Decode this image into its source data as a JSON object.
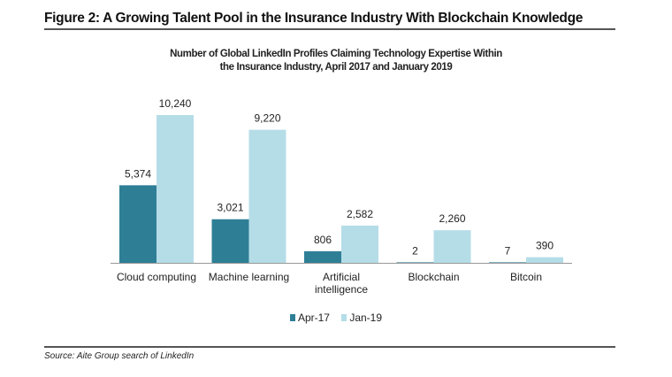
{
  "figure": {
    "title": "Figure 2: A Growing Talent Pool in the Insurance Industry With Blockchain Knowledge",
    "source": "Source: Aite Group search of LinkedIn"
  },
  "chart_data": {
    "type": "bar",
    "title_lines": [
      "Number of Global LinkedIn Profiles Claiming Technology Expertise Within",
      "the Insurance Industry, April 2017 and January 2019"
    ],
    "categories": [
      [
        "Cloud computing"
      ],
      [
        "Machine learning"
      ],
      [
        "Artificial",
        "intelligence"
      ],
      [
        "Blockchain"
      ],
      [
        "Bitcoin"
      ]
    ],
    "series": [
      {
        "name": "Apr-17",
        "color": "#2e7f96",
        "values": [
          5374,
          3021,
          806,
          2,
          7
        ],
        "labels": [
          "5,374",
          "3,021",
          "806",
          "2",
          "7"
        ]
      },
      {
        "name": "Jan-19",
        "color": "#b5dde8",
        "values": [
          10240,
          9220,
          2582,
          2260,
          390
        ],
        "labels": [
          "10,240",
          "9,220",
          "2,582",
          "2,260",
          "390"
        ]
      }
    ],
    "xlabel": "",
    "ylabel": "",
    "ylim": [
      0,
      10240
    ],
    "grid": false,
    "legend_position": "bottom-center",
    "data_labels": true
  }
}
